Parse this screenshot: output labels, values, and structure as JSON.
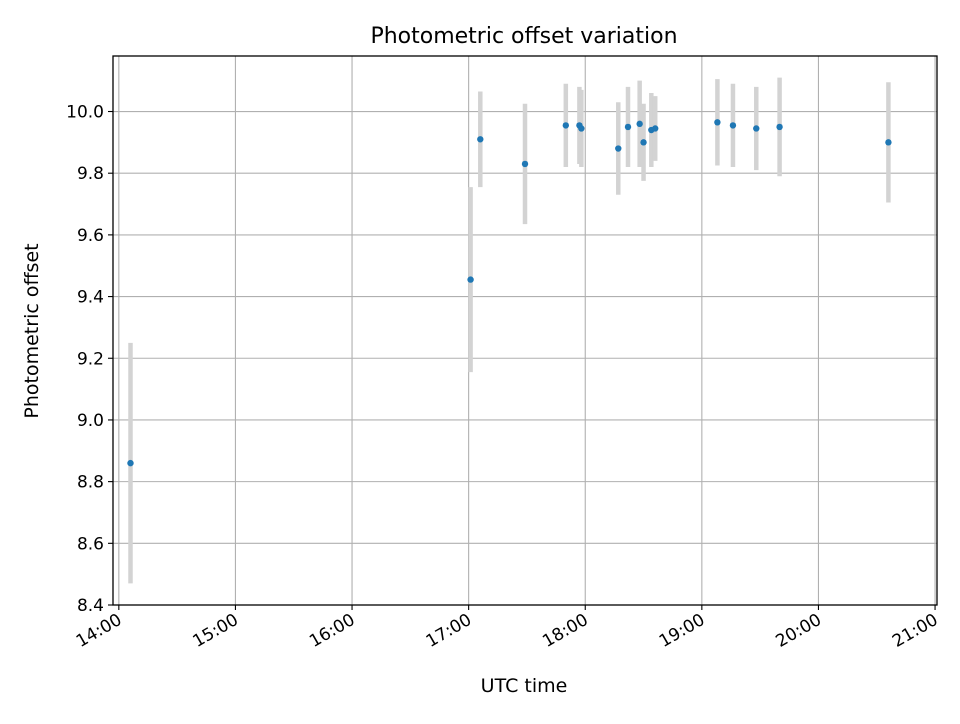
{
  "chart_data": {
    "type": "scatter",
    "title": "Photometric offset variation",
    "xlabel": "UTC time",
    "ylabel": "Photometric offset",
    "x_type": "time",
    "xlim": [
      "13:57",
      "21:01"
    ],
    "ylim": [
      8.4,
      10.18
    ],
    "x_ticks": [
      "14:00",
      "15:00",
      "16:00",
      "17:00",
      "18:00",
      "19:00",
      "20:00",
      "21:00"
    ],
    "y_ticks": [
      "8.4",
      "8.6",
      "8.8",
      "9.0",
      "9.2",
      "9.4",
      "9.6",
      "9.8",
      "10.0"
    ],
    "grid": true,
    "legend": null,
    "marker_color": "#1f77b4",
    "errorbar_color": "#d3d3d3",
    "points": [
      {
        "time": "14:06",
        "y": 8.86,
        "err": 0.39
      },
      {
        "time": "17:01",
        "y": 9.455,
        "err": 0.3
      },
      {
        "time": "17:06",
        "y": 9.91,
        "err": 0.155
      },
      {
        "time": "17:29",
        "y": 9.83,
        "err": 0.195
      },
      {
        "time": "17:50",
        "y": 9.955,
        "err": 0.135
      },
      {
        "time": "17:57",
        "y": 9.955,
        "err": 0.125
      },
      {
        "time": "17:58",
        "y": 9.945,
        "err": 0.125
      },
      {
        "time": "18:17",
        "y": 9.88,
        "err": 0.15
      },
      {
        "time": "18:22",
        "y": 9.95,
        "err": 0.13
      },
      {
        "time": "18:28",
        "y": 9.96,
        "err": 0.14
      },
      {
        "time": "18:30",
        "y": 9.9,
        "err": 0.125
      },
      {
        "time": "18:34",
        "y": 9.94,
        "err": 0.12
      },
      {
        "time": "18:36",
        "y": 9.945,
        "err": 0.105
      },
      {
        "time": "19:08",
        "y": 9.965,
        "err": 0.14
      },
      {
        "time": "19:16",
        "y": 9.955,
        "err": 0.135
      },
      {
        "time": "19:28",
        "y": 9.945,
        "err": 0.135
      },
      {
        "time": "19:40",
        "y": 9.95,
        "err": 0.16
      },
      {
        "time": "20:36",
        "y": 9.9,
        "err": 0.195
      }
    ]
  }
}
